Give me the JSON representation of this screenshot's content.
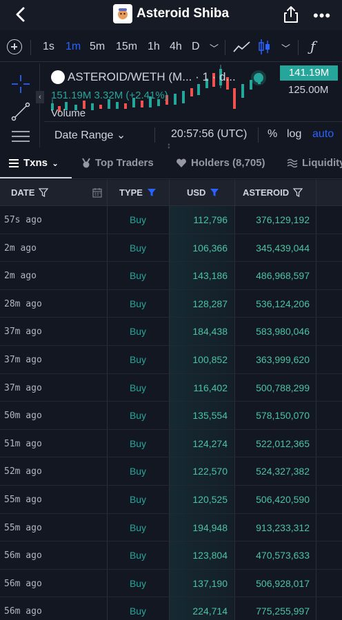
{
  "header": {
    "title": "Asteroid Shiba",
    "icons": {
      "back": "chevron-left-icon",
      "share": "share-icon",
      "more": "more-dots-icon"
    }
  },
  "toolbar": {
    "intervals": [
      "1s",
      "1m",
      "5m",
      "15m",
      "1h",
      "4h",
      "D"
    ],
    "active_interval": "1m"
  },
  "chart": {
    "pair": "ASTEROID/WETH (M... · 1 · d...",
    "price_badge": "141.19M",
    "price_second": "125.00M",
    "volume_values": "151.19M  3.32M (+2.41%)",
    "volume_label": "Volume",
    "date_range_label": "Date Range",
    "time": "20:57:56 (UTC)",
    "pct_label": "%",
    "log_label": "log",
    "auto_label": "auto",
    "up_color": "#26a69a",
    "down_color": "#ef5350"
  },
  "tabs": [
    {
      "label": "Txns",
      "icon": "list-icon"
    },
    {
      "label": "Top Traders",
      "icon": "medal-icon"
    },
    {
      "label": "Holders (8,705)",
      "icon": "heart-icon"
    },
    {
      "label": "Liquidity",
      "icon": "waves-icon"
    }
  ],
  "table": {
    "headers": {
      "date": "DATE",
      "type": "TYPE",
      "usd": "USD",
      "asteroid": "ASTEROID"
    },
    "rows": [
      {
        "date": "57s ago",
        "type": "Buy",
        "usd": "112,796",
        "asteroid": "376,129,192"
      },
      {
        "date": "2m ago",
        "type": "Buy",
        "usd": "106,366",
        "asteroid": "345,439,044"
      },
      {
        "date": "2m ago",
        "type": "Buy",
        "usd": "143,186",
        "asteroid": "486,968,597"
      },
      {
        "date": "28m ago",
        "type": "Buy",
        "usd": "128,287",
        "asteroid": "536,124,206"
      },
      {
        "date": "37m ago",
        "type": "Buy",
        "usd": "184,438",
        "asteroid": "583,980,046"
      },
      {
        "date": "37m ago",
        "type": "Buy",
        "usd": "100,852",
        "asteroid": "363,999,620"
      },
      {
        "date": "37m ago",
        "type": "Buy",
        "usd": "116,402",
        "asteroid": "500,788,299"
      },
      {
        "date": "50m ago",
        "type": "Buy",
        "usd": "135,554",
        "asteroid": "578,150,070"
      },
      {
        "date": "51m ago",
        "type": "Buy",
        "usd": "124,274",
        "asteroid": "522,012,365"
      },
      {
        "date": "52m ago",
        "type": "Buy",
        "usd": "122,570",
        "asteroid": "524,327,382"
      },
      {
        "date": "55m ago",
        "type": "Buy",
        "usd": "120,525",
        "asteroid": "506,420,590"
      },
      {
        "date": "55m ago",
        "type": "Buy",
        "usd": "194,948",
        "asteroid": "913,233,312"
      },
      {
        "date": "56m ago",
        "type": "Buy",
        "usd": "123,804",
        "asteroid": "470,573,633"
      },
      {
        "date": "56m ago",
        "type": "Buy",
        "usd": "137,190",
        "asteroid": "506,928,017"
      },
      {
        "date": "56m ago",
        "type": "Buy",
        "usd": "224,714",
        "asteroid": "775,255,997"
      }
    ]
  }
}
